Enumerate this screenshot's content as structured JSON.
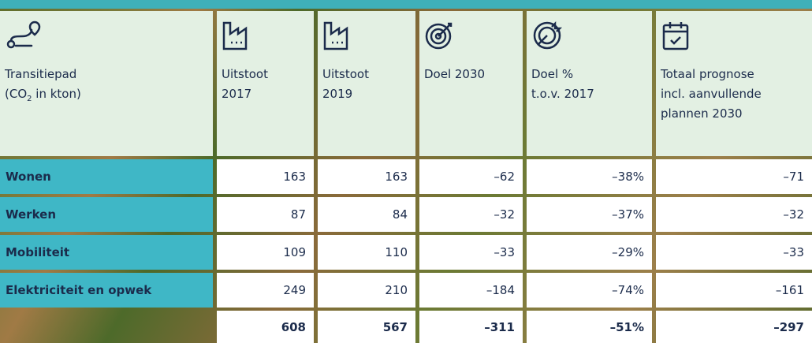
{
  "table": {
    "header": [
      {
        "lines": [
          "Transitiepad"
        ],
        "sub": [
          "(CO",
          "2",
          " in kton)"
        ]
      },
      {
        "lines": [
          "Uitstoot",
          "2017"
        ]
      },
      {
        "lines": [
          "Uitstoot",
          "2019"
        ]
      },
      {
        "lines": [
          "Doel 2030"
        ]
      },
      {
        "lines": [
          "Doel %",
          "t.o.v. 2017"
        ]
      },
      {
        "lines": [
          "Totaal prognose",
          "incl. aanvullende",
          "plannen 2030"
        ]
      }
    ],
    "rows": [
      [
        "Wonen",
        "163",
        "163",
        "–62",
        "–38%",
        "–71"
      ],
      [
        "Werken",
        "87",
        "84",
        "–32",
        "–37%",
        "–32"
      ],
      [
        "Mobiliteit",
        "109",
        "110",
        "–33",
        "–29%",
        "–33"
      ],
      [
        "Elektriciteit en opwek",
        "249",
        "210",
        "–184",
        "–74%",
        "–161"
      ],
      [
        "",
        "608",
        "567",
        "–311",
        "–51%",
        "–297"
      ]
    ]
  }
}
